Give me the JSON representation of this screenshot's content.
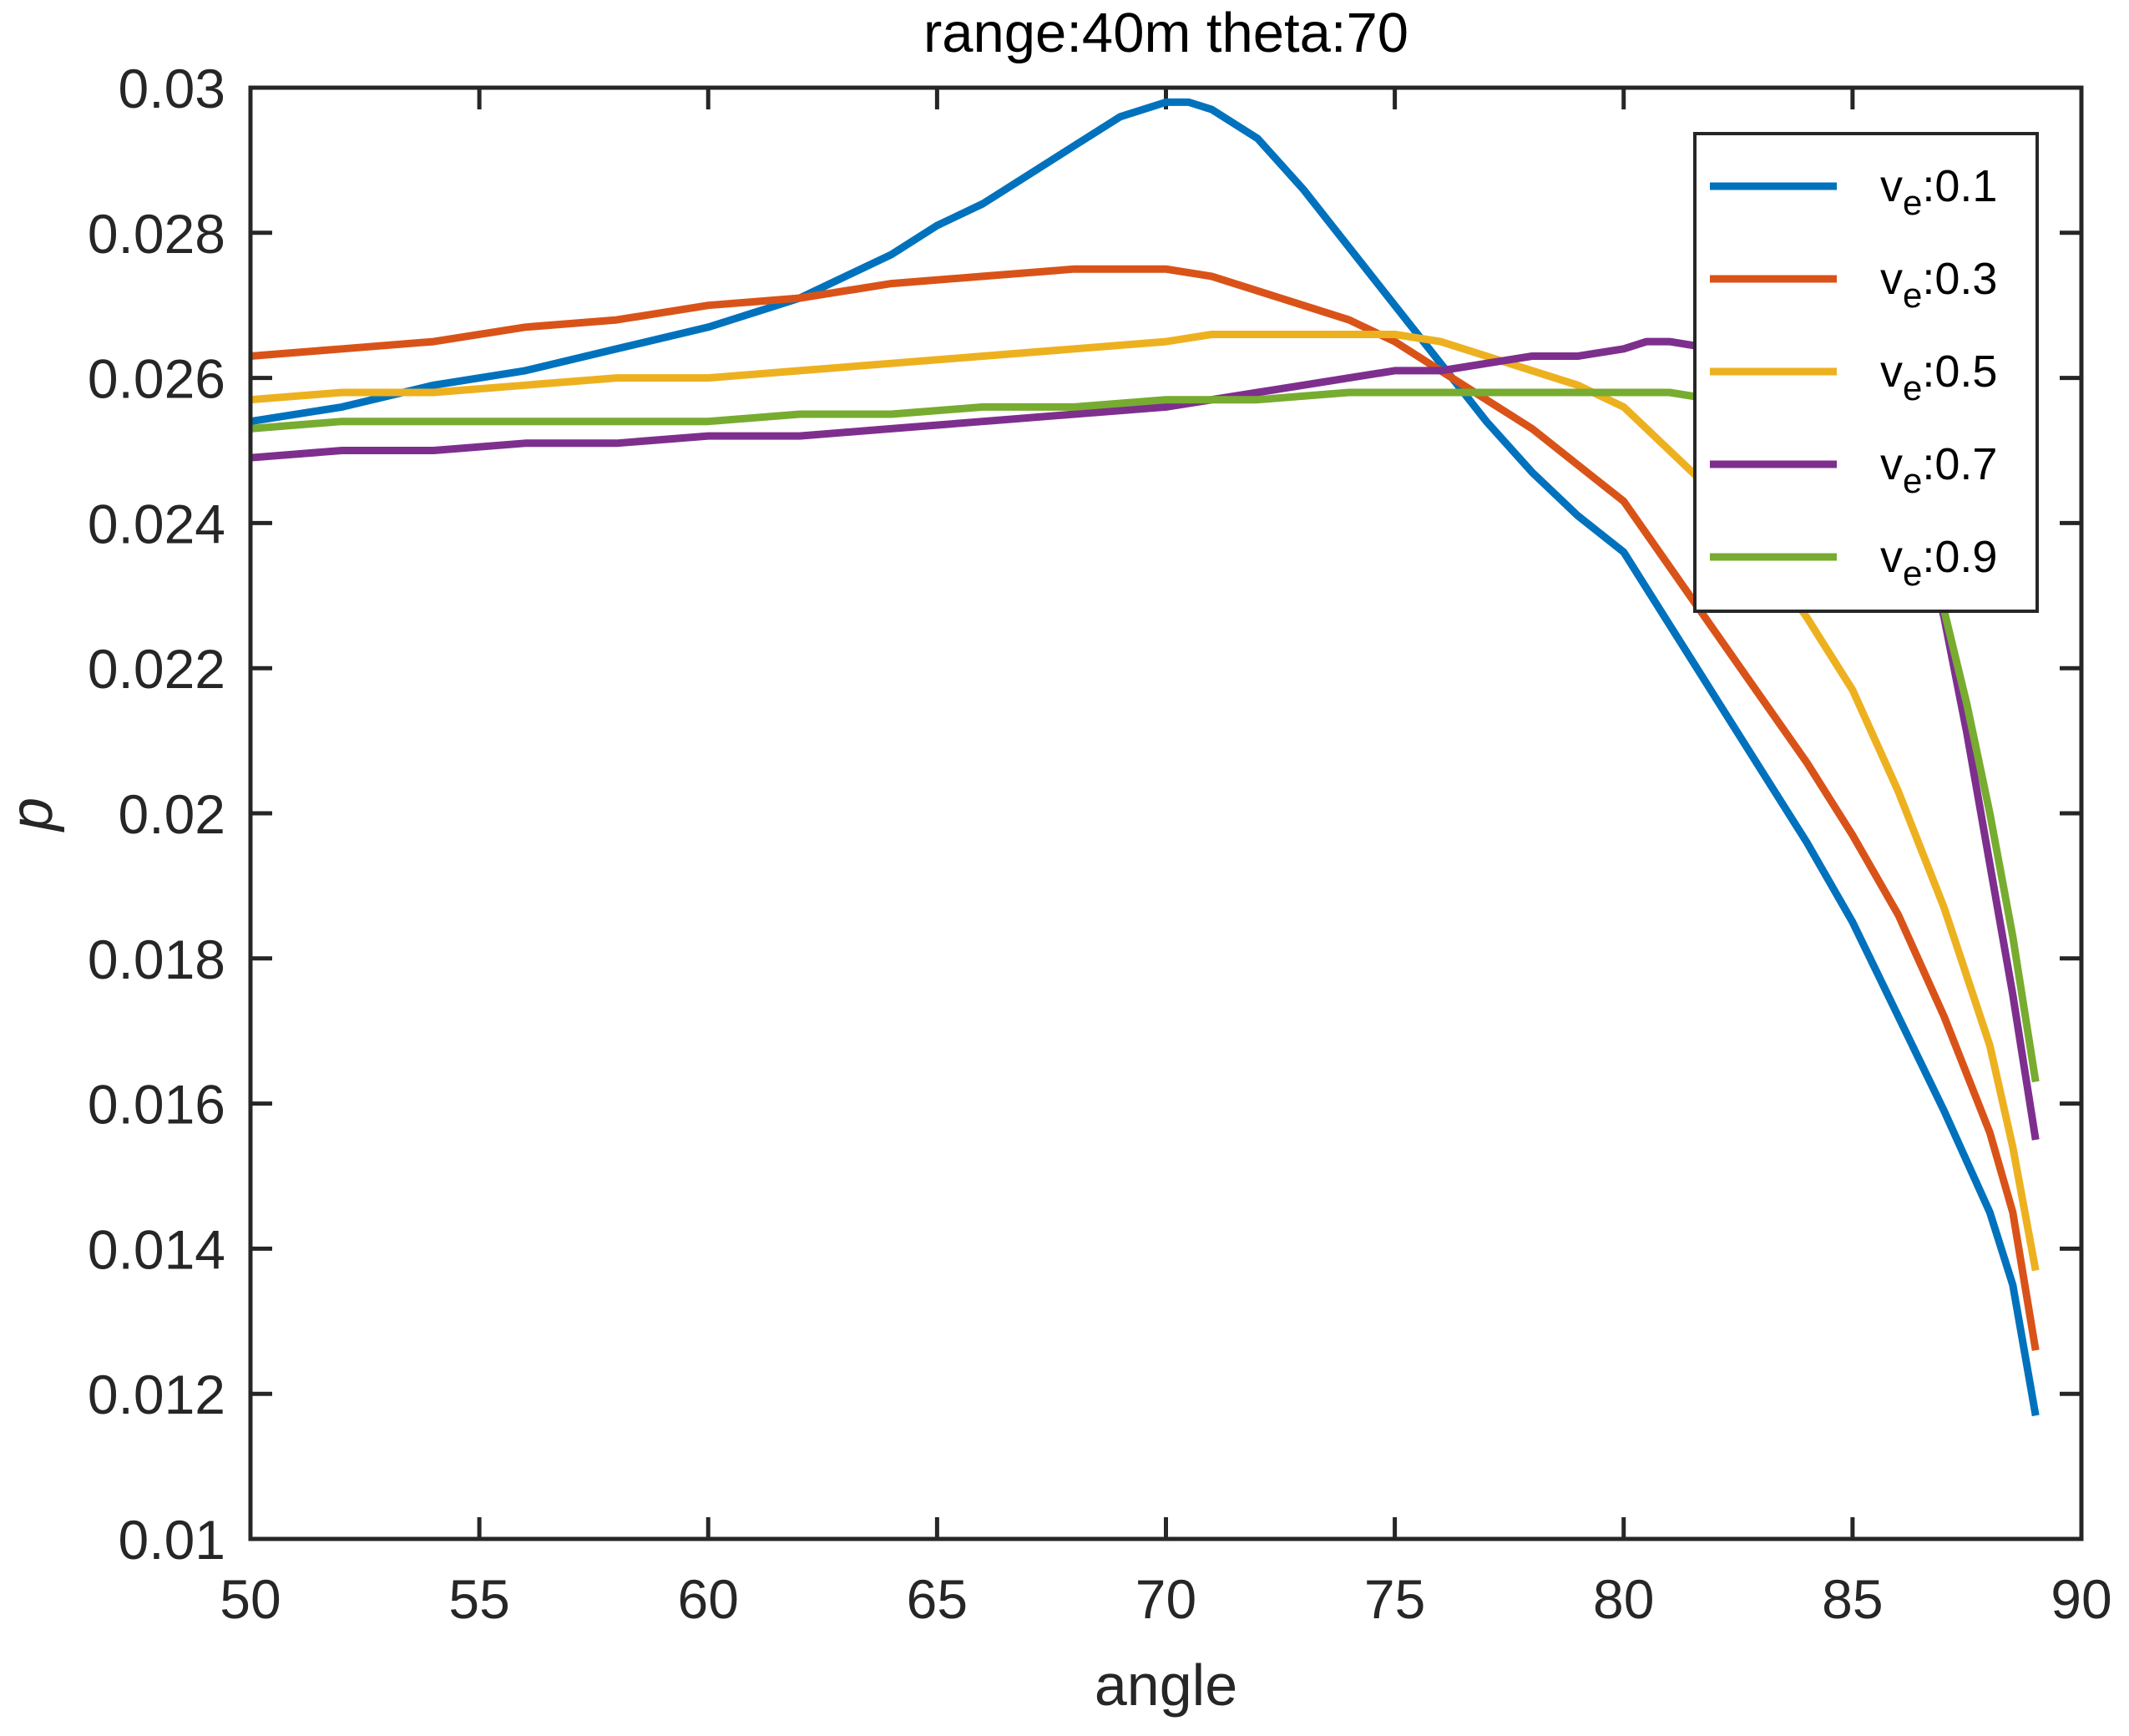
{
  "figure": {
    "title": "range:40m theta:70",
    "xlabel": "angle",
    "ylabel": "p"
  },
  "colors": {
    "axis": "#262626",
    "title": "#000000",
    "background": "#ffffff",
    "series_blue": "#0072BD",
    "series_orange": "#D95319",
    "series_yellow": "#EDB120",
    "series_purple": "#7E2F8E",
    "series_green": "#77AC30"
  },
  "axes": {
    "x_tick_labels": [
      "50",
      "55",
      "60",
      "65",
      "70",
      "75",
      "80",
      "85",
      "90"
    ],
    "y_tick_labels": [
      "0.01",
      "0.012",
      "0.014",
      "0.016",
      "0.018",
      "0.02",
      "0.022",
      "0.024",
      "0.026",
      "0.028",
      "0.03"
    ]
  },
  "legend": {
    "entries": [
      {
        "prefix": "v",
        "sub": "e",
        "suffix": ":0.1",
        "color": "#0072BD"
      },
      {
        "prefix": "v",
        "sub": "e",
        "suffix": ":0.3",
        "color": "#D95319"
      },
      {
        "prefix": "v",
        "sub": "e",
        "suffix": ":0.5",
        "color": "#EDB120"
      },
      {
        "prefix": "v",
        "sub": "e",
        "suffix": ":0.7",
        "color": "#7E2F8E"
      },
      {
        "prefix": "v",
        "sub": "e",
        "suffix": ":0.9",
        "color": "#77AC30"
      }
    ]
  },
  "chart_data": {
    "type": "line",
    "title": "range:40m theta:70",
    "xlabel": "angle",
    "ylabel": "p",
    "xlim": [
      50,
      90
    ],
    "ylim": [
      0.01,
      0.03
    ],
    "x_ticks": [
      50,
      55,
      60,
      65,
      70,
      75,
      80,
      85,
      90
    ],
    "y_ticks": [
      0.01,
      0.012,
      0.014,
      0.016,
      0.018,
      0.02,
      0.022,
      0.024,
      0.026,
      0.028,
      0.03
    ],
    "grid": false,
    "legend_position": "northeast",
    "series": [
      {
        "name": "ve:0.1",
        "color": "#0072BD",
        "x": [
          50,
          52,
          54,
          56,
          58,
          60,
          62,
          64,
          65,
          66,
          67,
          68,
          69,
          70,
          70.5,
          71,
          72,
          73,
          74,
          75,
          76,
          77,
          78,
          79,
          80,
          81,
          82,
          83,
          84,
          85,
          86,
          87,
          88,
          88.5,
          89
        ],
        "y": [
          0.0254,
          0.0256,
          0.0259,
          0.0261,
          0.0264,
          0.0267,
          0.0271,
          0.0277,
          0.0281,
          0.0284,
          0.0288,
          0.0292,
          0.0296,
          0.0298,
          0.0298,
          0.0297,
          0.0293,
          0.0286,
          0.0278,
          0.027,
          0.0262,
          0.0254,
          0.0247,
          0.0241,
          0.0236,
          0.0226,
          0.0216,
          0.0206,
          0.0196,
          0.0185,
          0.0172,
          0.0159,
          0.0145,
          0.0135,
          0.0117
        ]
      },
      {
        "name": "ve:0.3",
        "color": "#D95319",
        "x": [
          50,
          52,
          54,
          56,
          58,
          60,
          62,
          64,
          66,
          68,
          69,
          70,
          71,
          72,
          73,
          74,
          75,
          76,
          77,
          78,
          79,
          80,
          81,
          82,
          83,
          84,
          85,
          86,
          87,
          88,
          88.5,
          89
        ],
        "y": [
          0.0263,
          0.0264,
          0.0265,
          0.0267,
          0.0268,
          0.027,
          0.0271,
          0.0273,
          0.0274,
          0.0275,
          0.0275,
          0.0275,
          0.0274,
          0.0272,
          0.027,
          0.0268,
          0.0265,
          0.0261,
          0.0257,
          0.0253,
          0.0248,
          0.0243,
          0.0234,
          0.0225,
          0.0216,
          0.0207,
          0.0197,
          0.0186,
          0.0172,
          0.0156,
          0.0145,
          0.0126
        ]
      },
      {
        "name": "ve:0.5",
        "color": "#EDB120",
        "x": [
          50,
          52,
          54,
          56,
          58,
          60,
          62,
          64,
          66,
          68,
          70,
          71,
          72,
          73,
          74,
          75,
          76,
          77,
          78,
          79,
          80,
          81,
          82,
          83,
          84,
          85,
          86,
          87,
          88,
          88.5,
          89
        ],
        "y": [
          0.0257,
          0.0258,
          0.0258,
          0.0259,
          0.026,
          0.026,
          0.0261,
          0.0262,
          0.0263,
          0.0264,
          0.0265,
          0.0266,
          0.0266,
          0.0266,
          0.0266,
          0.0266,
          0.0265,
          0.0263,
          0.0261,
          0.0259,
          0.0256,
          0.025,
          0.0244,
          0.0236,
          0.0227,
          0.0217,
          0.0203,
          0.0187,
          0.0168,
          0.0154,
          0.0137
        ]
      },
      {
        "name": "ve:0.7",
        "color": "#7E2F8E",
        "x": [
          50,
          52,
          54,
          56,
          58,
          60,
          62,
          64,
          66,
          68,
          70,
          72,
          74,
          75,
          76,
          77,
          78,
          79,
          80,
          80.5,
          81,
          82,
          83,
          84,
          85,
          86,
          86.5,
          87,
          87.5,
          88,
          88.5,
          89
        ],
        "y": [
          0.0249,
          0.025,
          0.025,
          0.0251,
          0.0251,
          0.0252,
          0.0252,
          0.0253,
          0.0254,
          0.0255,
          0.0256,
          0.0258,
          0.026,
          0.0261,
          0.0261,
          0.0262,
          0.0263,
          0.0263,
          0.0264,
          0.0265,
          0.0265,
          0.0264,
          0.0262,
          0.0259,
          0.0255,
          0.0247,
          0.024,
          0.0227,
          0.0211,
          0.0193,
          0.0175,
          0.0155
        ]
      },
      {
        "name": "ve:0.9",
        "color": "#77AC30",
        "x": [
          50,
          52,
          54,
          56,
          58,
          60,
          62,
          64,
          66,
          68,
          70,
          72,
          74,
          76,
          78,
          79,
          80,
          81,
          82,
          83,
          84,
          85,
          86,
          86.5,
          87,
          87.5,
          88,
          88.5,
          89
        ],
        "y": [
          0.0253,
          0.0254,
          0.0254,
          0.0254,
          0.0254,
          0.0254,
          0.0255,
          0.0255,
          0.0256,
          0.0256,
          0.0257,
          0.0257,
          0.0258,
          0.0258,
          0.0258,
          0.0258,
          0.0258,
          0.0258,
          0.0257,
          0.0256,
          0.0254,
          0.025,
          0.0243,
          0.0237,
          0.0228,
          0.0215,
          0.02,
          0.0183,
          0.0163
        ]
      }
    ]
  }
}
